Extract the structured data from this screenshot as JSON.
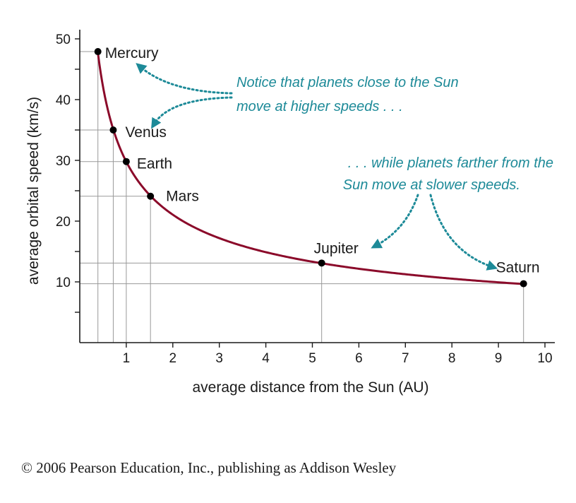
{
  "chart_data": {
    "type": "scatter",
    "xlabel": "average distance from the Sun (AU)",
    "ylabel": "average orbital speed (km/s)",
    "xlim": [
      0,
      10
    ],
    "ylim": [
      0,
      50
    ],
    "x_ticks": [
      1,
      2,
      3,
      4,
      5,
      6,
      7,
      8,
      9,
      10
    ],
    "y_ticks": [
      10,
      20,
      30,
      40,
      50
    ],
    "grid": false,
    "curve": "orbital speed proportional to 1/sqrt(distance)",
    "points": [
      {
        "name": "Mercury",
        "x": 0.39,
        "y": 47.9
      },
      {
        "name": "Venus",
        "x": 0.72,
        "y": 35.0
      },
      {
        "name": "Earth",
        "x": 1.0,
        "y": 29.8
      },
      {
        "name": "Mars",
        "x": 1.52,
        "y": 24.1
      },
      {
        "name": "Jupiter",
        "x": 5.2,
        "y": 13.1
      },
      {
        "name": "Saturn",
        "x": 9.54,
        "y": 9.7
      }
    ],
    "annotations": [
      {
        "lines": [
          "Notice that planets close to the Sun",
          "move at higher speeds . . ."
        ]
      },
      {
        "lines": [
          ". . . while planets farther from the",
          "Sun move at slower speeds."
        ]
      }
    ],
    "curve_color": "#8b0a2a",
    "annotation_color": "#1d8a98"
  },
  "copyright": "© 2006 Pearson Education, Inc., publishing as Addison Wesley"
}
